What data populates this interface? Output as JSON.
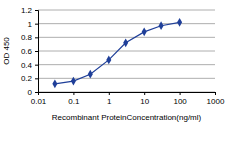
{
  "chart_data": {
    "type": "line",
    "x_label": "Recombinant ProteinConcentration(ng/ml)",
    "y_label": "OD 450",
    "x": [
      0.03,
      0.1,
      0.3,
      1,
      3,
      10,
      30,
      100
    ],
    "values": [
      0.12,
      0.16,
      0.26,
      0.47,
      0.72,
      0.88,
      0.97,
      1.02
    ],
    "color": "#1f3f99",
    "marker": "diamond",
    "log": "x",
    "xlim": [
      0.01,
      1000
    ],
    "xticks": [
      0.01,
      0.1,
      1,
      10,
      100,
      1000
    ],
    "ylim": [
      0,
      1.2
    ],
    "yticks": [
      0,
      0.2,
      0.4,
      0.6,
      0.8,
      1,
      1.2
    ],
    "grid": true
  }
}
